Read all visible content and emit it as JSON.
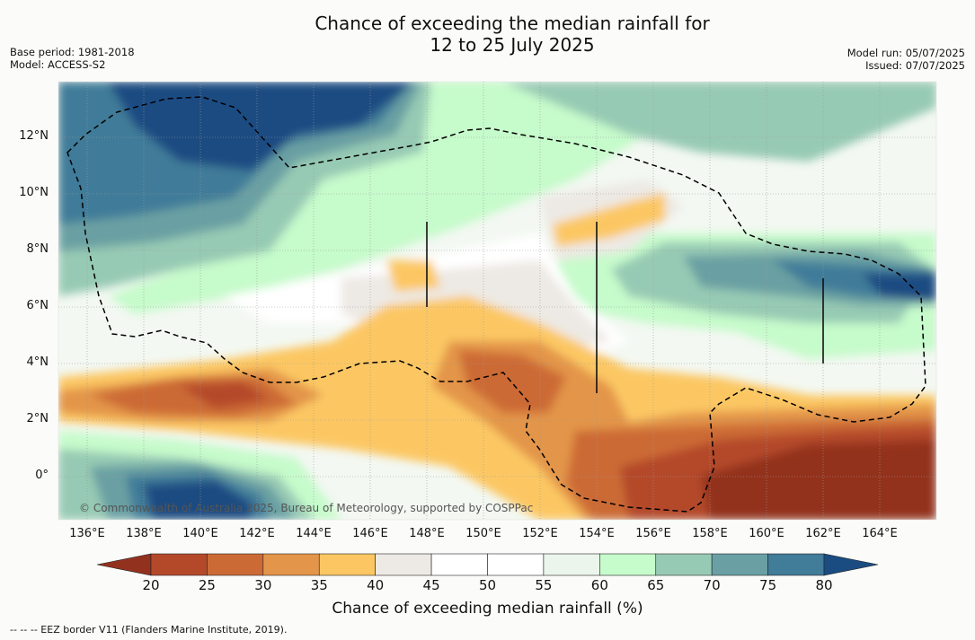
{
  "header": {
    "title_line1": "Chance of exceeding the median rainfall for",
    "title_line2": "12 to 25 July 2025",
    "base_period": "Base period: 1981-2018",
    "model": "Model: ACCESS-S2",
    "model_run": "Model run: 05/07/2025",
    "issued": "Issued: 07/07/2025"
  },
  "map": {
    "lat_labels": [
      "12°N",
      "10°N",
      "8°N",
      "6°N",
      "4°N",
      "2°N",
      "0°"
    ],
    "lon_labels": [
      "136°E",
      "138°E",
      "140°E",
      "142°E",
      "144°E",
      "146°E",
      "148°E",
      "150°E",
      "152°E",
      "154°E",
      "156°E",
      "158°E",
      "160°E",
      "162°E",
      "164°E"
    ],
    "copyright": "© Commonwealth of Australia 2025, Bureau of Meteorology, supported by COSPPac"
  },
  "colorbar": {
    "ticks": [
      "20",
      "25",
      "30",
      "35",
      "40",
      "45",
      "50",
      "55",
      "60",
      "65",
      "70",
      "75",
      "80"
    ],
    "colors": [
      "#93311f",
      "#b4492a",
      "#cc6a36",
      "#e3954a",
      "#fcc763",
      "#ede9e4",
      "#ffffff",
      "#ffffff",
      "#ecf5ec",
      "#c6fbcb",
      "#97cab4",
      "#6aa0a3",
      "#417c99",
      "#1a4c82"
    ],
    "label": "Chance of exceeding median rainfall (%)"
  },
  "footnote": "--  --  -- EEZ border V11 (Flanders Marine Institute, 2019)."
}
